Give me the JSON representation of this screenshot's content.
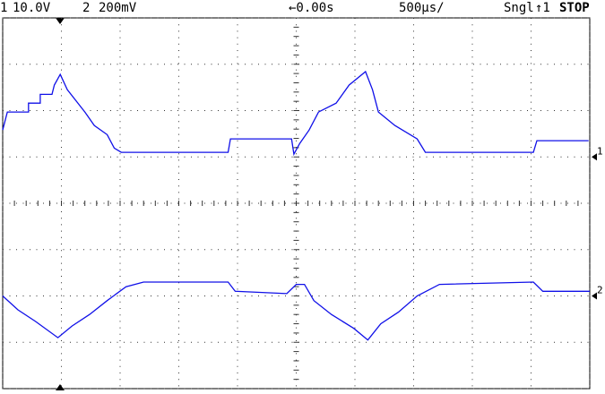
{
  "chart_data": {
    "type": "line",
    "header": {
      "ch1_scale": "10.0V",
      "ch2_scale": "200mV",
      "delay": "←0.00s",
      "timebase": "500µs/",
      "mode": "Sngl",
      "trigger": "↑1",
      "state": "STOP"
    },
    "xlim": [
      -2.5,
      2.5
    ],
    "xticks": [
      -2.5,
      -2,
      -1.5,
      -1,
      -0.5,
      0,
      0.5,
      1,
      1.5,
      2,
      2.5
    ],
    "ylim": [
      -50,
      30
    ],
    "yticks": [
      -50,
      -40,
      -30,
      -20,
      -10,
      0,
      10,
      20,
      30
    ],
    "y2lim": [
      -0.4,
      1.2
    ],
    "grid": true,
    "series": [
      {
        "name": "1",
        "color": "#1010e8",
        "x": [
          -2.5,
          -2.46,
          -2.28,
          -2.28,
          -2.18,
          -2.18,
          -2.08,
          -2.06,
          -2.01,
          -1.95,
          -1.8,
          -1.72,
          -1.61,
          -1.55,
          -1.49,
          -0.58,
          -0.56,
          -0.04,
          -0.02,
          0.03,
          0.11,
          0.19,
          0.34,
          0.45,
          0.59,
          0.65,
          0.7,
          0.84,
          1.03,
          1.1,
          2.02,
          2.05,
          2.49
        ],
        "values": [
          5.8,
          9.7,
          9.7,
          11.6,
          11.6,
          13.5,
          13.5,
          15.5,
          17.8,
          14.5,
          9.7,
          6.8,
          4.8,
          1.9,
          1.0,
          1.0,
          3.9,
          3.9,
          0.6,
          2.9,
          5.8,
          9.7,
          11.6,
          15.5,
          18.4,
          14.5,
          9.7,
          6.8,
          3.9,
          1.0,
          1.0,
          3.5,
          3.5
        ]
      },
      {
        "name": "2",
        "color": "#1010e8",
        "axis": "y2",
        "x": [
          -2.5,
          -2.37,
          -2.22,
          -2.03,
          -1.91,
          -1.76,
          -1.61,
          -1.45,
          -1.3,
          -0.58,
          -0.52,
          -0.08,
          0,
          0.07,
          0.15,
          0.3,
          0.49,
          0.61,
          0.72,
          0.87,
          1.03,
          1.22,
          2.02,
          2.1,
          2.5
        ],
        "values": [
          0,
          -0.06,
          -0.11,
          -0.18,
          -0.13,
          -0.08,
          -0.02,
          0.04,
          0.06,
          0.06,
          0.02,
          0.01,
          0.05,
          0.05,
          -0.02,
          -0.08,
          -0.14,
          -0.19,
          -0.12,
          -0.07,
          0,
          0.05,
          0.06,
          0.02,
          0.02
        ]
      }
    ]
  }
}
